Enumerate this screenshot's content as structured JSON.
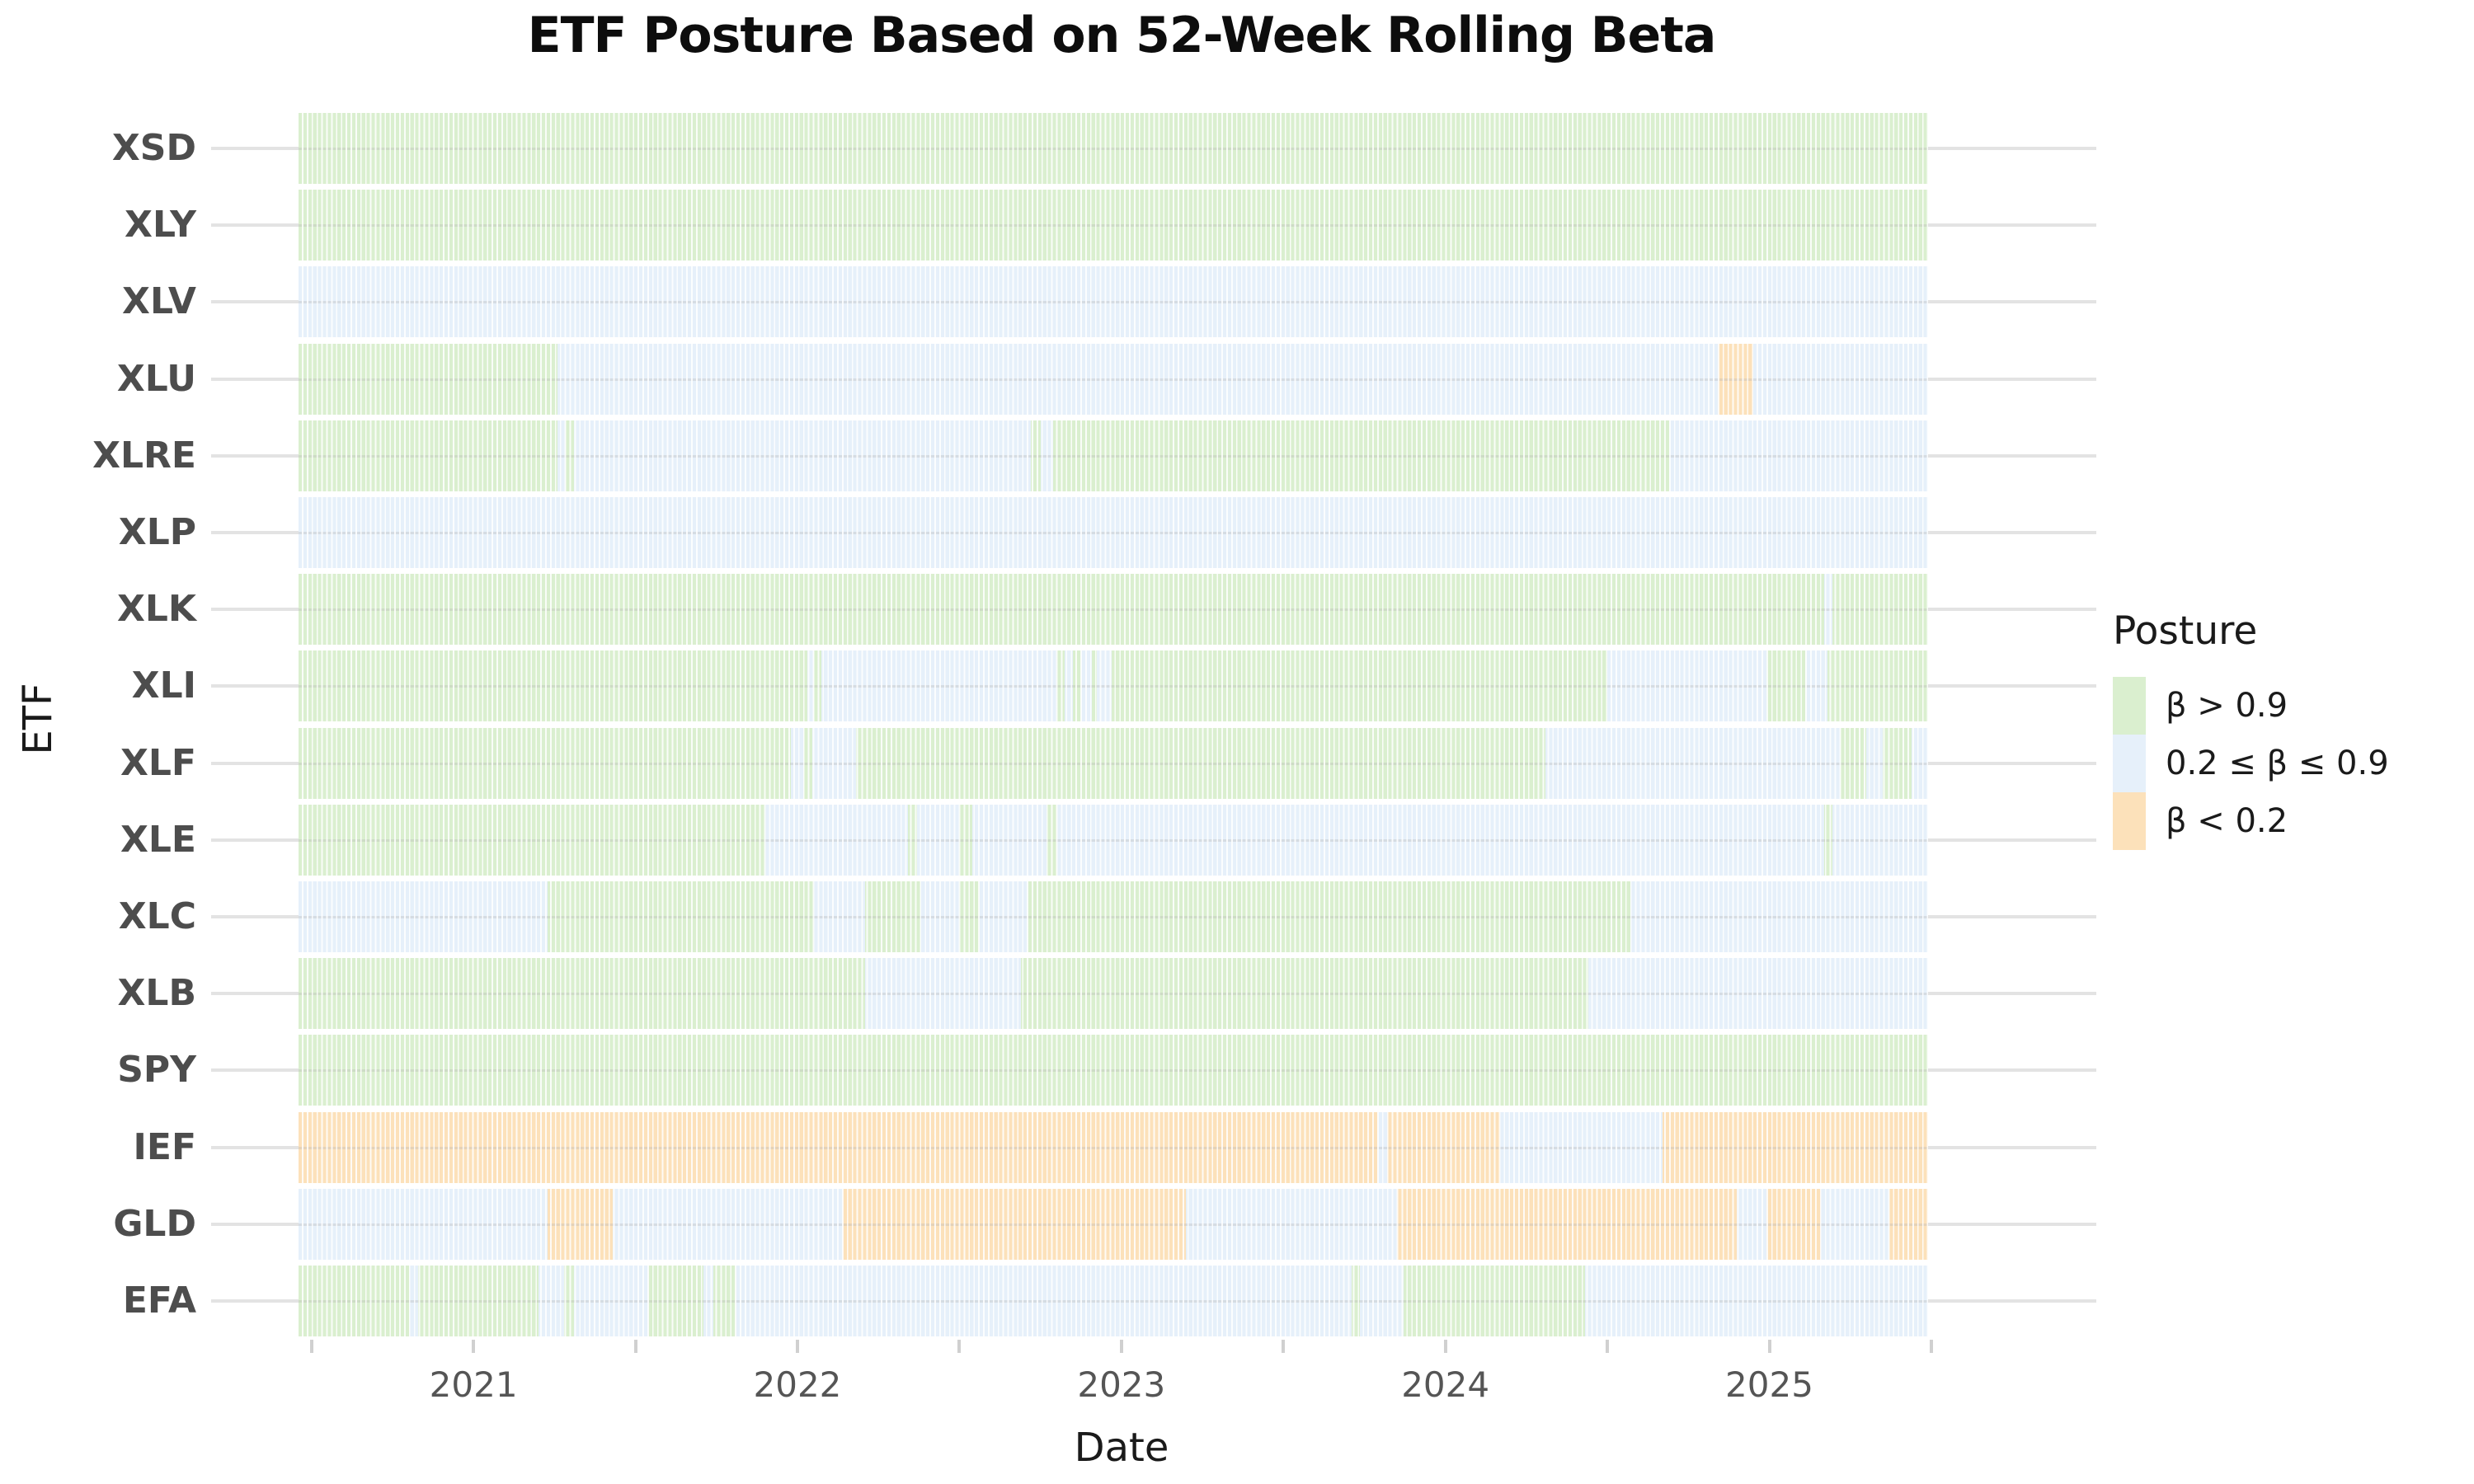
{
  "chart_data": {
    "type": "heatmap",
    "title": "ETF Posture Based on 52-Week Rolling Beta",
    "xlabel": "Date",
    "ylabel": "ETF",
    "x_axis": {
      "domain": [
        2020.46,
        2025.49
      ],
      "major_ticks": [
        {
          "value": 2021,
          "label": "2021"
        },
        {
          "value": 2022,
          "label": "2022"
        },
        {
          "value": 2023,
          "label": "2023"
        },
        {
          "value": 2024,
          "label": "2024"
        },
        {
          "value": 2025,
          "label": "2025"
        }
      ],
      "minor_ticks": [
        2020.5,
        2021.5,
        2022.5,
        2023.5,
        2024.5,
        2025.5
      ],
      "grid": "horizontal-only"
    },
    "legend": {
      "title": "Posture",
      "position": "right",
      "entries": [
        {
          "key": "high",
          "label": "β > 0.9"
        },
        {
          "key": "mid",
          "label": "0.2 ≤ β ≤ 0.9"
        },
        {
          "key": "low",
          "label": "β < 0.2"
        }
      ]
    },
    "posture_colors": {
      "high": "#daefcf",
      "mid": "#e6f0fa",
      "low": "#fce1ba"
    },
    "grid_color": "#e3e3e3",
    "tick_label_color": "#555555",
    "segment_format": [
      "start_year_fraction",
      "end_year_fraction",
      "posture"
    ],
    "rows": [
      {
        "etf": "XSD",
        "segments": [
          [
            2020.46,
            2025.49,
            "high"
          ]
        ]
      },
      {
        "etf": "XLY",
        "segments": [
          [
            2020.46,
            2025.49,
            "high"
          ]
        ]
      },
      {
        "etf": "XLV",
        "segments": [
          [
            2020.46,
            2025.49,
            "mid"
          ]
        ]
      },
      {
        "etf": "XLU",
        "segments": [
          [
            2020.46,
            2021.26,
            "high"
          ],
          [
            2021.26,
            2024.84,
            "mid"
          ],
          [
            2024.84,
            2024.95,
            "low"
          ],
          [
            2024.95,
            2025.49,
            "mid"
          ]
        ]
      },
      {
        "etf": "XLRE",
        "segments": [
          [
            2020.46,
            2021.26,
            "high"
          ],
          [
            2021.26,
            2021.285,
            "mid"
          ],
          [
            2021.285,
            2021.31,
            "high"
          ],
          [
            2021.31,
            2022.72,
            "mid"
          ],
          [
            2022.72,
            2022.75,
            "high"
          ],
          [
            2022.75,
            2022.79,
            "mid"
          ],
          [
            2022.79,
            2024.69,
            "high"
          ],
          [
            2024.69,
            2025.49,
            "mid"
          ]
        ]
      },
      {
        "etf": "XLP",
        "segments": [
          [
            2020.46,
            2025.49,
            "mid"
          ]
        ]
      },
      {
        "etf": "XLK",
        "segments": [
          [
            2020.46,
            2025.17,
            "high"
          ],
          [
            2025.17,
            2025.195,
            "mid"
          ],
          [
            2025.195,
            2025.49,
            "high"
          ]
        ]
      },
      {
        "etf": "XLI",
        "segments": [
          [
            2020.46,
            2022.03,
            "high"
          ],
          [
            2022.03,
            2022.05,
            "mid"
          ],
          [
            2022.05,
            2022.075,
            "high"
          ],
          [
            2022.075,
            2022.8,
            "mid"
          ],
          [
            2022.8,
            2022.825,
            "high"
          ],
          [
            2022.825,
            2022.85,
            "mid"
          ],
          [
            2022.85,
            2022.875,
            "high"
          ],
          [
            2022.875,
            2022.91,
            "mid"
          ],
          [
            2022.91,
            2022.925,
            "high"
          ],
          [
            2022.925,
            2022.97,
            "mid"
          ],
          [
            2022.97,
            2024.5,
            "high"
          ],
          [
            2024.5,
            2024.99,
            "mid"
          ],
          [
            2024.99,
            2025.11,
            "high"
          ],
          [
            2025.11,
            2025.18,
            "mid"
          ],
          [
            2025.18,
            2025.49,
            "high"
          ]
        ]
      },
      {
        "etf": "XLF",
        "segments": [
          [
            2020.46,
            2021.98,
            "high"
          ],
          [
            2021.98,
            2022.02,
            "mid"
          ],
          [
            2022.02,
            2022.045,
            "high"
          ],
          [
            2022.045,
            2022.18,
            "mid"
          ],
          [
            2022.18,
            2024.31,
            "high"
          ],
          [
            2024.31,
            2025.22,
            "mid"
          ],
          [
            2025.22,
            2025.3,
            "high"
          ],
          [
            2025.3,
            2025.35,
            "mid"
          ],
          [
            2025.35,
            2025.44,
            "high"
          ],
          [
            2025.44,
            2025.49,
            "mid"
          ]
        ]
      },
      {
        "etf": "XLE",
        "segments": [
          [
            2020.46,
            2021.9,
            "high"
          ],
          [
            2021.9,
            2022.34,
            "mid"
          ],
          [
            2022.34,
            2022.37,
            "high"
          ],
          [
            2022.37,
            2022.5,
            "mid"
          ],
          [
            2022.5,
            2022.54,
            "high"
          ],
          [
            2022.54,
            2022.77,
            "mid"
          ],
          [
            2022.77,
            2022.8,
            "high"
          ],
          [
            2022.8,
            2025.17,
            "mid"
          ],
          [
            2025.17,
            2025.195,
            "high"
          ],
          [
            2025.195,
            2025.49,
            "mid"
          ]
        ]
      },
      {
        "etf": "XLC",
        "segments": [
          [
            2020.46,
            2021.23,
            "mid"
          ],
          [
            2021.23,
            2022.05,
            "high"
          ],
          [
            2022.05,
            2022.21,
            "mid"
          ],
          [
            2022.21,
            2022.38,
            "high"
          ],
          [
            2022.38,
            2022.5,
            "mid"
          ],
          [
            2022.5,
            2022.56,
            "high"
          ],
          [
            2022.56,
            2022.71,
            "mid"
          ],
          [
            2022.71,
            2024.57,
            "high"
          ],
          [
            2024.57,
            2025.49,
            "mid"
          ]
        ]
      },
      {
        "etf": "XLB",
        "segments": [
          [
            2020.46,
            2022.21,
            "high"
          ],
          [
            2022.21,
            2022.69,
            "mid"
          ],
          [
            2022.69,
            2024.44,
            "high"
          ],
          [
            2024.44,
            2025.49,
            "mid"
          ]
        ]
      },
      {
        "etf": "SPY",
        "segments": [
          [
            2020.46,
            2025.49,
            "high"
          ]
        ]
      },
      {
        "etf": "IEF",
        "segments": [
          [
            2020.46,
            2023.79,
            "low"
          ],
          [
            2023.79,
            2023.82,
            "mid"
          ],
          [
            2023.82,
            2024.17,
            "low"
          ],
          [
            2024.17,
            2024.67,
            "mid"
          ],
          [
            2024.67,
            2025.49,
            "low"
          ]
        ]
      },
      {
        "etf": "GLD",
        "segments": [
          [
            2020.46,
            2021.23,
            "mid"
          ],
          [
            2021.23,
            2021.43,
            "low"
          ],
          [
            2021.43,
            2022.14,
            "mid"
          ],
          [
            2022.14,
            2023.2,
            "low"
          ],
          [
            2023.2,
            2023.85,
            "mid"
          ],
          [
            2023.85,
            2024.9,
            "low"
          ],
          [
            2024.9,
            2024.99,
            "mid"
          ],
          [
            2024.99,
            2025.16,
            "low"
          ],
          [
            2025.16,
            2025.37,
            "mid"
          ],
          [
            2025.37,
            2025.49,
            "low"
          ]
        ]
      },
      {
        "etf": "EFA",
        "segments": [
          [
            2020.46,
            2020.8,
            "high"
          ],
          [
            2020.8,
            2020.83,
            "mid"
          ],
          [
            2020.83,
            2021.2,
            "high"
          ],
          [
            2021.2,
            2021.28,
            "mid"
          ],
          [
            2021.28,
            2021.31,
            "high"
          ],
          [
            2021.31,
            2021.54,
            "mid"
          ],
          [
            2021.54,
            2021.71,
            "high"
          ],
          [
            2021.71,
            2021.74,
            "mid"
          ],
          [
            2021.74,
            2021.81,
            "high"
          ],
          [
            2021.81,
            2023.71,
            "mid"
          ],
          [
            2023.71,
            2023.735,
            "high"
          ],
          [
            2023.735,
            2023.87,
            "mid"
          ],
          [
            2023.87,
            2024.43,
            "high"
          ],
          [
            2024.43,
            2025.49,
            "mid"
          ]
        ]
      }
    ]
  }
}
